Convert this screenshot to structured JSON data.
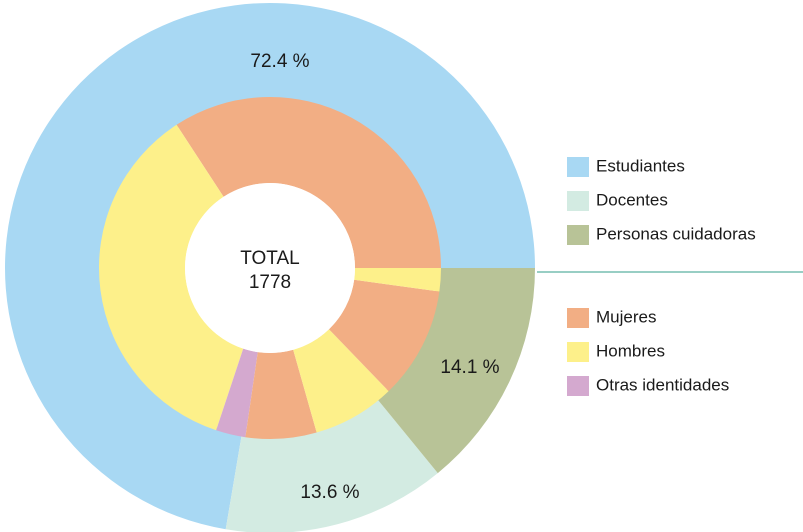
{
  "chart_data": {
    "type": "nested-donut",
    "center_label": "TOTAL",
    "total": 1778,
    "outer": {
      "categories": [
        "Estudiantes",
        "Docentes",
        "Personas cuidadoras"
      ],
      "values": [
        72.4,
        13.6,
        14.1
      ],
      "value_labels": [
        "72.4 %",
        "13.6 %",
        "14.1 %"
      ],
      "colors": [
        "#a8d8f3",
        "#d3ebe2",
        "#b8c397"
      ]
    },
    "inner": {
      "categories": [
        "Mujeres",
        "Hombres",
        "Otras identidades"
      ],
      "colors": [
        "#f2ae84",
        "#fdf08a",
        "#d4a9cf"
      ],
      "slices": [
        {
          "group": 0,
          "value": 34.2
        },
        {
          "group": 1,
          "value": 35.7
        },
        {
          "group": 2,
          "value": 2.8
        },
        {
          "group": 0,
          "value": 6.7
        },
        {
          "group": 1,
          "value": 7.8
        },
        {
          "group": 0,
          "value": 10.6
        },
        {
          "group": 1,
          "value": 2.2
        }
      ]
    }
  }
}
